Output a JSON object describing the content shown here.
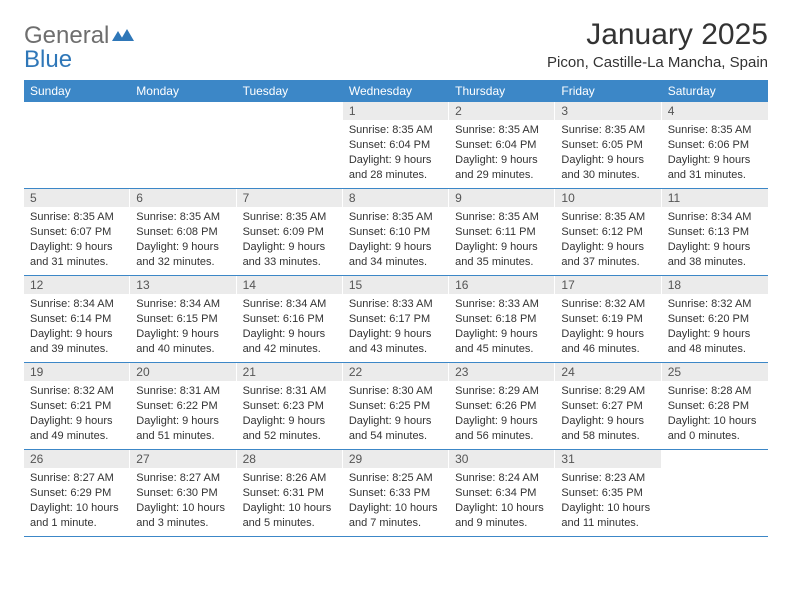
{
  "brand": {
    "part1": "General",
    "part2": "Blue"
  },
  "title": "January 2025",
  "location": "Picon, Castille-La Mancha, Spain",
  "colors": {
    "header_bg": "#3c87c7",
    "header_text": "#ffffff",
    "daynum_bg": "#ebebeb",
    "row_border": "#3c87c7",
    "brand_gray": "#6e6e6e",
    "brand_blue": "#2f77b8",
    "page_bg": "#ffffff",
    "text": "#333333"
  },
  "weekdays": [
    "Sunday",
    "Monday",
    "Tuesday",
    "Wednesday",
    "Thursday",
    "Friday",
    "Saturday"
  ],
  "weeks": [
    [
      null,
      null,
      null,
      {
        "n": "1",
        "sr": "8:35 AM",
        "ss": "6:04 PM",
        "dl": "9 hours and 28 minutes."
      },
      {
        "n": "2",
        "sr": "8:35 AM",
        "ss": "6:04 PM",
        "dl": "9 hours and 29 minutes."
      },
      {
        "n": "3",
        "sr": "8:35 AM",
        "ss": "6:05 PM",
        "dl": "9 hours and 30 minutes."
      },
      {
        "n": "4",
        "sr": "8:35 AM",
        "ss": "6:06 PM",
        "dl": "9 hours and 31 minutes."
      }
    ],
    [
      {
        "n": "5",
        "sr": "8:35 AM",
        "ss": "6:07 PM",
        "dl": "9 hours and 31 minutes."
      },
      {
        "n": "6",
        "sr": "8:35 AM",
        "ss": "6:08 PM",
        "dl": "9 hours and 32 minutes."
      },
      {
        "n": "7",
        "sr": "8:35 AM",
        "ss": "6:09 PM",
        "dl": "9 hours and 33 minutes."
      },
      {
        "n": "8",
        "sr": "8:35 AM",
        "ss": "6:10 PM",
        "dl": "9 hours and 34 minutes."
      },
      {
        "n": "9",
        "sr": "8:35 AM",
        "ss": "6:11 PM",
        "dl": "9 hours and 35 minutes."
      },
      {
        "n": "10",
        "sr": "8:35 AM",
        "ss": "6:12 PM",
        "dl": "9 hours and 37 minutes."
      },
      {
        "n": "11",
        "sr": "8:34 AM",
        "ss": "6:13 PM",
        "dl": "9 hours and 38 minutes."
      }
    ],
    [
      {
        "n": "12",
        "sr": "8:34 AM",
        "ss": "6:14 PM",
        "dl": "9 hours and 39 minutes."
      },
      {
        "n": "13",
        "sr": "8:34 AM",
        "ss": "6:15 PM",
        "dl": "9 hours and 40 minutes."
      },
      {
        "n": "14",
        "sr": "8:34 AM",
        "ss": "6:16 PM",
        "dl": "9 hours and 42 minutes."
      },
      {
        "n": "15",
        "sr": "8:33 AM",
        "ss": "6:17 PM",
        "dl": "9 hours and 43 minutes."
      },
      {
        "n": "16",
        "sr": "8:33 AM",
        "ss": "6:18 PM",
        "dl": "9 hours and 45 minutes."
      },
      {
        "n": "17",
        "sr": "8:32 AM",
        "ss": "6:19 PM",
        "dl": "9 hours and 46 minutes."
      },
      {
        "n": "18",
        "sr": "8:32 AM",
        "ss": "6:20 PM",
        "dl": "9 hours and 48 minutes."
      }
    ],
    [
      {
        "n": "19",
        "sr": "8:32 AM",
        "ss": "6:21 PM",
        "dl": "9 hours and 49 minutes."
      },
      {
        "n": "20",
        "sr": "8:31 AM",
        "ss": "6:22 PM",
        "dl": "9 hours and 51 minutes."
      },
      {
        "n": "21",
        "sr": "8:31 AM",
        "ss": "6:23 PM",
        "dl": "9 hours and 52 minutes."
      },
      {
        "n": "22",
        "sr": "8:30 AM",
        "ss": "6:25 PM",
        "dl": "9 hours and 54 minutes."
      },
      {
        "n": "23",
        "sr": "8:29 AM",
        "ss": "6:26 PM",
        "dl": "9 hours and 56 minutes."
      },
      {
        "n": "24",
        "sr": "8:29 AM",
        "ss": "6:27 PM",
        "dl": "9 hours and 58 minutes."
      },
      {
        "n": "25",
        "sr": "8:28 AM",
        "ss": "6:28 PM",
        "dl": "10 hours and 0 minutes."
      }
    ],
    [
      {
        "n": "26",
        "sr": "8:27 AM",
        "ss": "6:29 PM",
        "dl": "10 hours and 1 minute."
      },
      {
        "n": "27",
        "sr": "8:27 AM",
        "ss": "6:30 PM",
        "dl": "10 hours and 3 minutes."
      },
      {
        "n": "28",
        "sr": "8:26 AM",
        "ss": "6:31 PM",
        "dl": "10 hours and 5 minutes."
      },
      {
        "n": "29",
        "sr": "8:25 AM",
        "ss": "6:33 PM",
        "dl": "10 hours and 7 minutes."
      },
      {
        "n": "30",
        "sr": "8:24 AM",
        "ss": "6:34 PM",
        "dl": "10 hours and 9 minutes."
      },
      {
        "n": "31",
        "sr": "8:23 AM",
        "ss": "6:35 PM",
        "dl": "10 hours and 11 minutes."
      },
      null
    ]
  ],
  "labels": {
    "sunrise": "Sunrise:",
    "sunset": "Sunset:",
    "daylight": "Daylight:"
  }
}
